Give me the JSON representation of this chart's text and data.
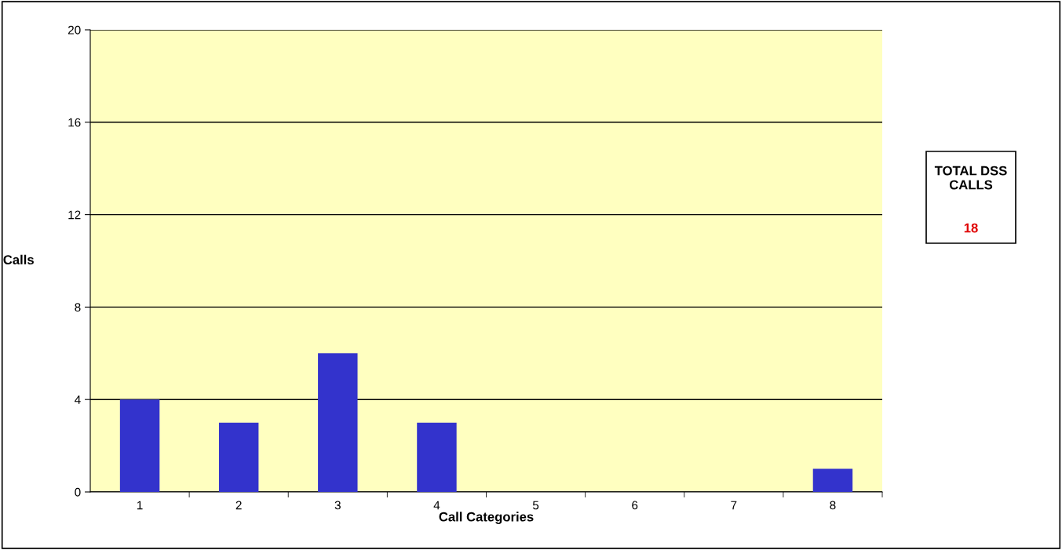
{
  "chart_data": {
    "type": "bar",
    "categories": [
      "1",
      "2",
      "3",
      "4",
      "5",
      "6",
      "7",
      "8"
    ],
    "values": [
      4,
      3,
      6,
      3,
      0,
      0,
      0,
      1
    ],
    "color": "#3333cc",
    "xlabel": "Call Categories",
    "ylabel": "Calls",
    "ylim": [
      0,
      20
    ],
    "yticks": [
      0,
      4,
      8,
      12,
      16,
      20
    ],
    "grid": "y",
    "legend": false,
    "annotations": [
      "TOTAL DSS\nCALLS",
      "18"
    ]
  }
}
